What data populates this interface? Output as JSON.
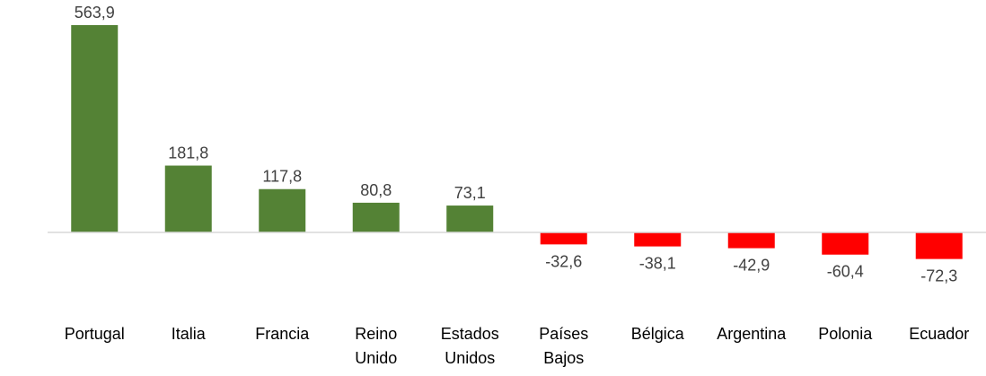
{
  "chart_data": {
    "type": "bar",
    "title": "",
    "xlabel": "",
    "ylabel": "",
    "categories": [
      [
        "Portugal"
      ],
      [
        "Italia"
      ],
      [
        "Francia"
      ],
      [
        "Reino",
        "Unido"
      ],
      [
        "Estados",
        "Unidos"
      ],
      [
        "Países",
        "Bajos"
      ],
      [
        "Bélgica"
      ],
      [
        "Argentina"
      ],
      [
        "Polonia"
      ],
      [
        "Ecuador"
      ]
    ],
    "values": [
      563.9,
      181.8,
      117.8,
      80.8,
      73.1,
      -32.6,
      -38.1,
      -42.9,
      -60.4,
      -72.3
    ],
    "value_labels": [
      "563,9",
      "181,8",
      "117,8",
      "80,8",
      "73,1",
      "-32,6",
      "-38,1",
      "-42,9",
      "-60,4",
      "-72,3"
    ],
    "colors": {
      "positive": "#548235",
      "negative": "#ff0000",
      "axis": "#d9d9d9"
    },
    "grid": false,
    "legend": "none"
  }
}
